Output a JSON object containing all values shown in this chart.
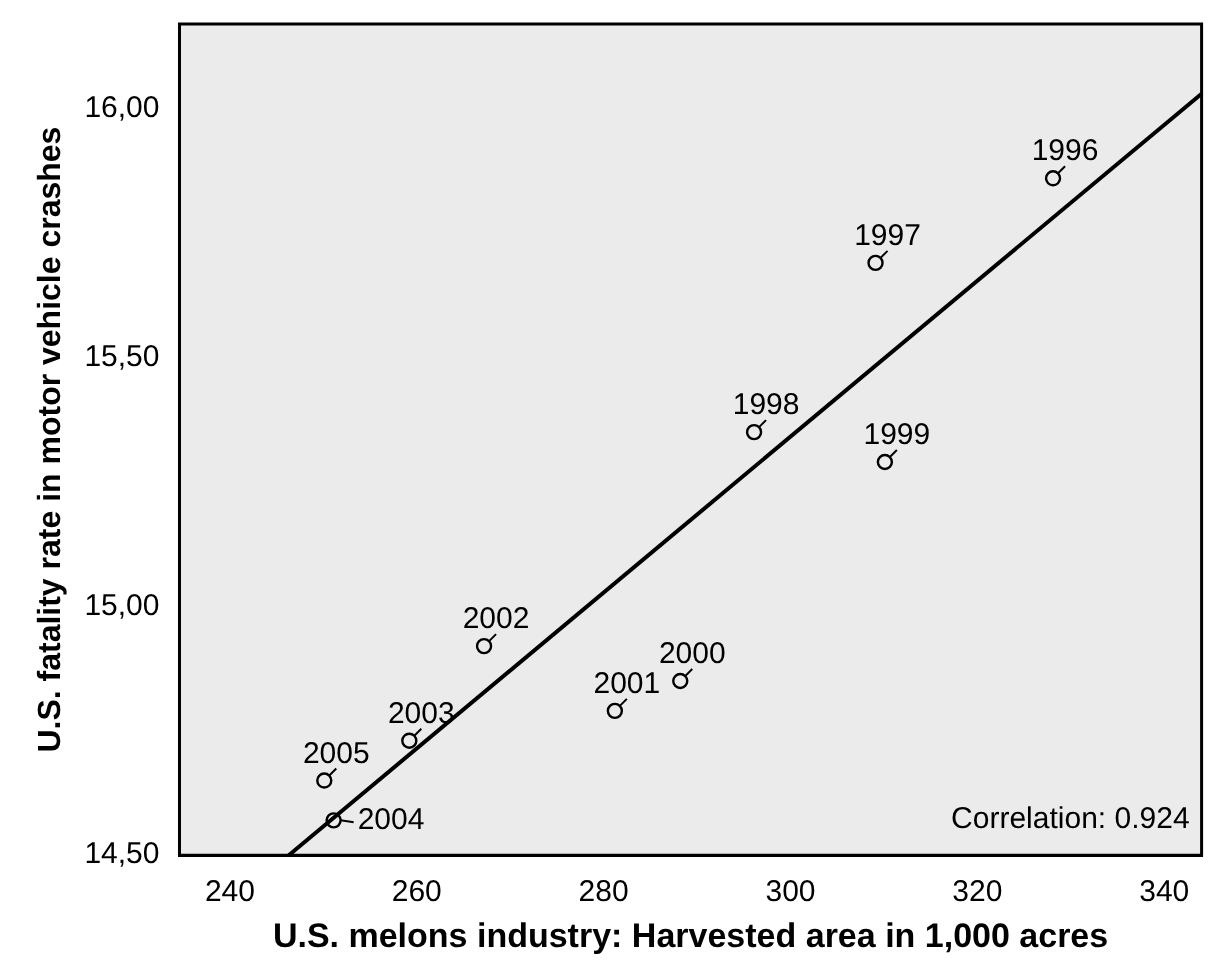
{
  "chart_data": {
    "type": "scatter",
    "xlabel": "U.S. melons industry: Harvested area in 1,000 acres",
    "ylabel": "U.S. fatality rate in motor vehicle crashes",
    "xlim": [
      234.6,
      344
    ],
    "xticks": [
      240,
      260,
      280,
      300,
      320,
      340
    ],
    "ylim": [
      14.5,
      16.17
    ],
    "yticks": [
      {
        "value": 14.5,
        "label": "14,50"
      },
      {
        "value": 15,
        "label": "15,00"
      },
      {
        "value": 15.5,
        "label": "15,50"
      },
      {
        "value": 16,
        "label": "16,00"
      }
    ],
    "grid": false,
    "legend": false,
    "marker": "circle",
    "series": [
      {
        "type": "scatter",
        "color": "#000000",
        "x": [
          328.1,
          309.1,
          296.1,
          310.1,
          288.2,
          281.2,
          267.2,
          259.2,
          251.1,
          250.1
        ],
        "values": [
          15.86,
          15.69,
          15.35,
          15.29,
          14.85,
          14.79,
          14.92,
          14.73,
          14.57,
          14.65
        ]
      },
      {
        "type": "line",
        "color": "#000000",
        "marker": "none",
        "x": [
          246.3,
          344
        ],
        "values": [
          14.5,
          16.03
        ]
      }
    ],
    "annotations": [
      {
        "text": "1996",
        "x": 328.1,
        "y": 15.86
      },
      {
        "text": "1997",
        "x": 309.1,
        "y": 15.69
      },
      {
        "text": "1998",
        "x": 296.1,
        "y": 15.35
      },
      {
        "text": "1999",
        "x": 310.1,
        "y": 15.29
      },
      {
        "text": "2000",
        "x": 288.2,
        "y": 14.85
      },
      {
        "text": "2001",
        "x": 281.2,
        "y": 14.79
      },
      {
        "text": "2002",
        "x": 267.2,
        "y": 14.92
      },
      {
        "text": "2003",
        "x": 259.2,
        "y": 14.73
      },
      {
        "text": "2004",
        "x": 251.1,
        "y": 14.57
      },
      {
        "text": "2005",
        "x": 250.1,
        "y": 14.65
      },
      "Correlation: 0.924"
    ]
  }
}
